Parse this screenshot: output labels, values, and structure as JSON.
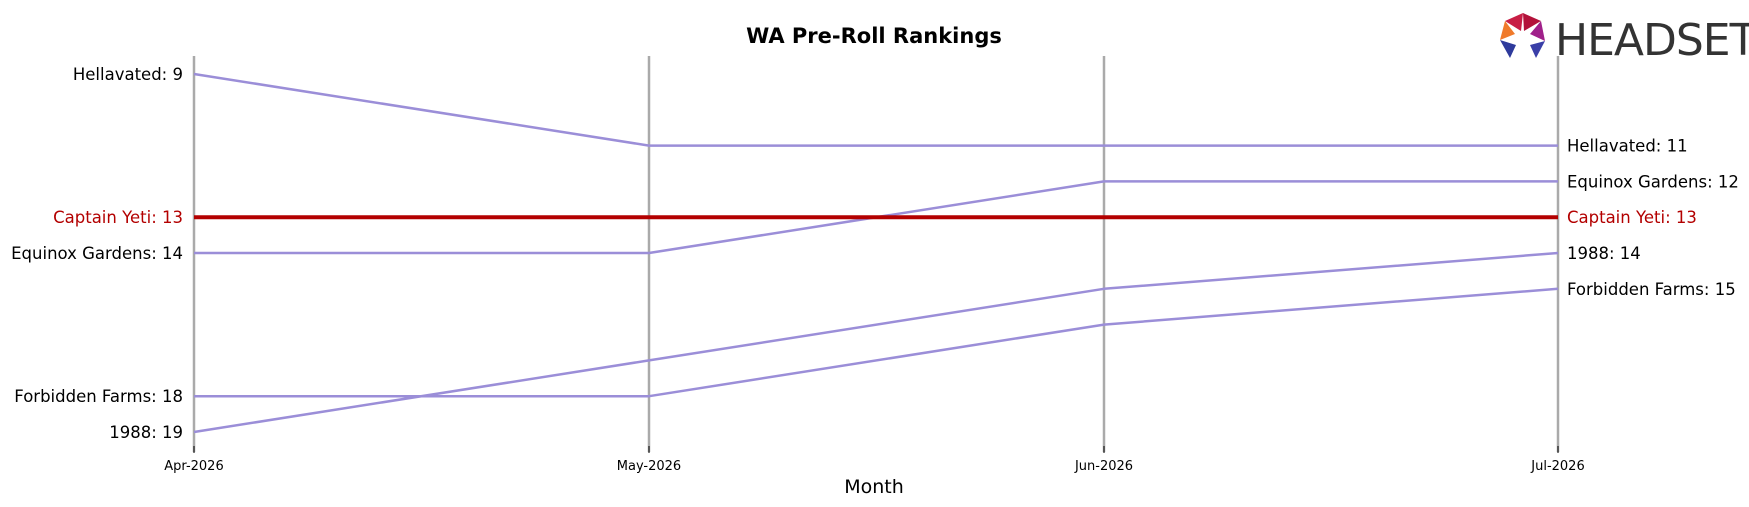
{
  "chart_data": {
    "type": "line",
    "title": "WA Pre-Roll Rankings",
    "xlabel": "Month",
    "ylabel": "",
    "x": [
      "Apr-2026",
      "May-2026",
      "Jun-2026",
      "Jul-2026"
    ],
    "y_inverted": true,
    "ylim": [
      20,
      8
    ],
    "grid": "vertical lines at each month",
    "highlight_color": "#b30000",
    "series_color": "#9b8ed8",
    "series": [
      {
        "name": "Hellavated",
        "values": [
          9,
          11,
          11,
          11
        ],
        "highlight": false
      },
      {
        "name": "Captain Yeti",
        "values": [
          13,
          13,
          13,
          13
        ],
        "highlight": true
      },
      {
        "name": "Equinox Gardens",
        "values": [
          14,
          14,
          12,
          12
        ],
        "highlight": false
      },
      {
        "name": "Forbidden Farms",
        "values": [
          18,
          18,
          16,
          15
        ],
        "highlight": false
      },
      {
        "name": "1988",
        "values": [
          19,
          17,
          15,
          14
        ],
        "highlight": false
      }
    ]
  },
  "logo": {
    "text": "HEADSET"
  }
}
